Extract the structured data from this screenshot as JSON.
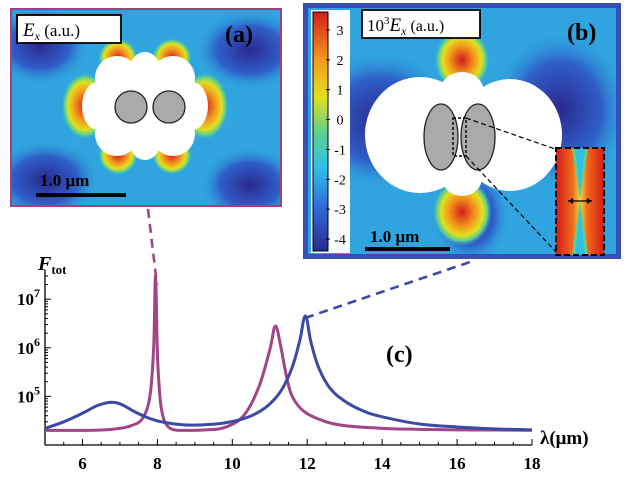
{
  "panels": {
    "a": {
      "label": "(a)",
      "field_label": "E",
      "field_sub": "x",
      "field_unit": " (a.u.)",
      "scale_bar": "1.0 μm",
      "frame_color": "#a2407a"
    },
    "b": {
      "label": "(b)",
      "field_prefix": "10",
      "field_exp": "3",
      "field_label": "E",
      "field_sub": "x",
      "field_unit": " (a.u.)",
      "scale_bar": "1.0 μm",
      "frame_color": "#3a4fb3"
    },
    "c": {
      "label": "(c)"
    }
  },
  "colorbar": {
    "ticks": [
      "3",
      "2",
      "1",
      "0",
      "-1",
      "-2",
      "-3",
      "-4"
    ],
    "range": [
      -4.4,
      3.6
    ],
    "colors": [
      "#2a2a8e",
      "#2f6ad9",
      "#2fc0e6",
      "#5fd08a",
      "#e0e020",
      "#f39a1c",
      "#d61c1c"
    ]
  },
  "colors": {
    "field_background": "#2fa4df",
    "particle": "#aaaaaa",
    "void": "#ffffff"
  },
  "chart_data": {
    "type": "line",
    "title": "",
    "xlabel": "λ(μm)",
    "ylabel_main": "F",
    "ylabel_sub": "tot",
    "xlim": [
      5,
      18
    ],
    "ylim_log10": [
      4.0,
      7.6
    ],
    "y_scale": "log",
    "x_ticks": [
      "6",
      "8",
      "10",
      "12",
      "14",
      "16",
      "18"
    ],
    "y_ticks": [
      {
        "base": "10",
        "exp": "5",
        "log": 5
      },
      {
        "base": "10",
        "exp": "6",
        "log": 6
      },
      {
        "base": "10",
        "exp": "7",
        "log": 7
      }
    ],
    "series": [
      {
        "color": "#a04585",
        "x": [
          5.0,
          5.5,
          6.0,
          6.5,
          7.0,
          7.3,
          7.6,
          7.8,
          7.9,
          7.95,
          8.0,
          8.05,
          8.1,
          8.2,
          8.4,
          8.8,
          9.3,
          9.8,
          10.3,
          10.7,
          11.0,
          11.15,
          11.3,
          11.45,
          11.6,
          11.9,
          12.4,
          13.0,
          14.0,
          15.0,
          16.0,
          17.0,
          18.0
        ],
        "y": [
          20000,
          20000,
          20000,
          20300,
          22000,
          25000,
          35000,
          100000,
          1000000,
          30000000,
          800000,
          150000,
          60000,
          30000,
          21000,
          20000,
          20500,
          23000,
          40000,
          150000,
          900000,
          2800000,
          1000000,
          250000,
          100000,
          50000,
          32000,
          25000,
          22000,
          21000,
          20500,
          20300,
          20100
        ]
      },
      {
        "color": "#3b4aa4",
        "x": [
          5.0,
          5.5,
          6.0,
          6.4,
          6.7,
          6.9,
          7.1,
          7.4,
          7.8,
          8.2,
          8.7,
          9.2,
          9.8,
          10.4,
          10.9,
          11.3,
          11.6,
          11.8,
          11.95,
          12.1,
          12.3,
          12.6,
          13.0,
          13.5,
          14.0,
          15.0,
          16.0,
          17.0,
          18.0
        ],
        "y": [
          22000,
          30000,
          45000,
          65000,
          75000,
          74000,
          65000,
          48000,
          35000,
          29000,
          26000,
          26000,
          28500,
          37000,
          60000,
          130000,
          400000,
          1400000,
          4500000,
          1300000,
          400000,
          150000,
          80000,
          50000,
          38000,
          27000,
          23500,
          21500,
          20500
        ]
      }
    ]
  }
}
